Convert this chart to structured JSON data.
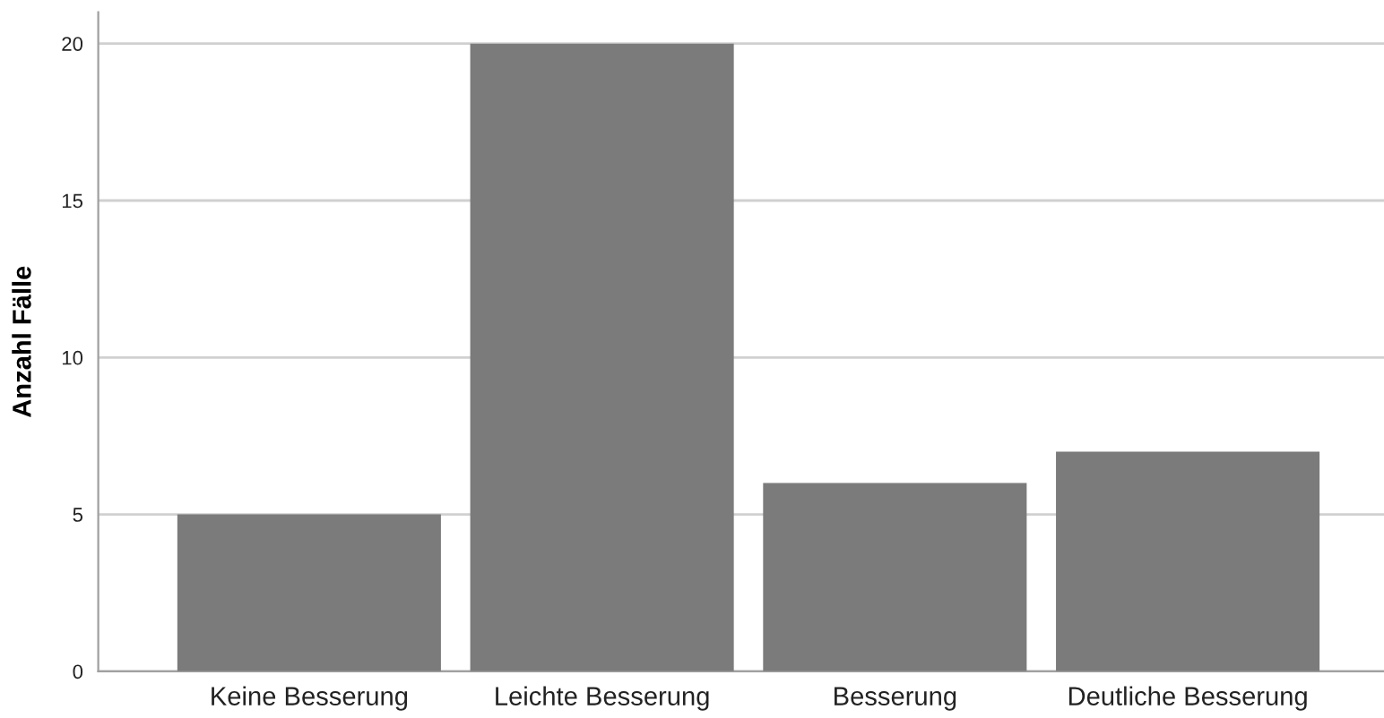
{
  "chart_data": {
    "type": "bar",
    "ylabel": "Anzahl Fälle",
    "categories": [
      "Keine Besserung",
      "Leichte Besserung",
      "Besserung",
      "Deutliche Besserung"
    ],
    "values": [
      5,
      20,
      6,
      7
    ],
    "color": "#7b7b7b",
    "ylim": [
      0,
      21
    ],
    "yticks": [
      0,
      5,
      10,
      15,
      20
    ],
    "grid": "y",
    "legend": false
  }
}
